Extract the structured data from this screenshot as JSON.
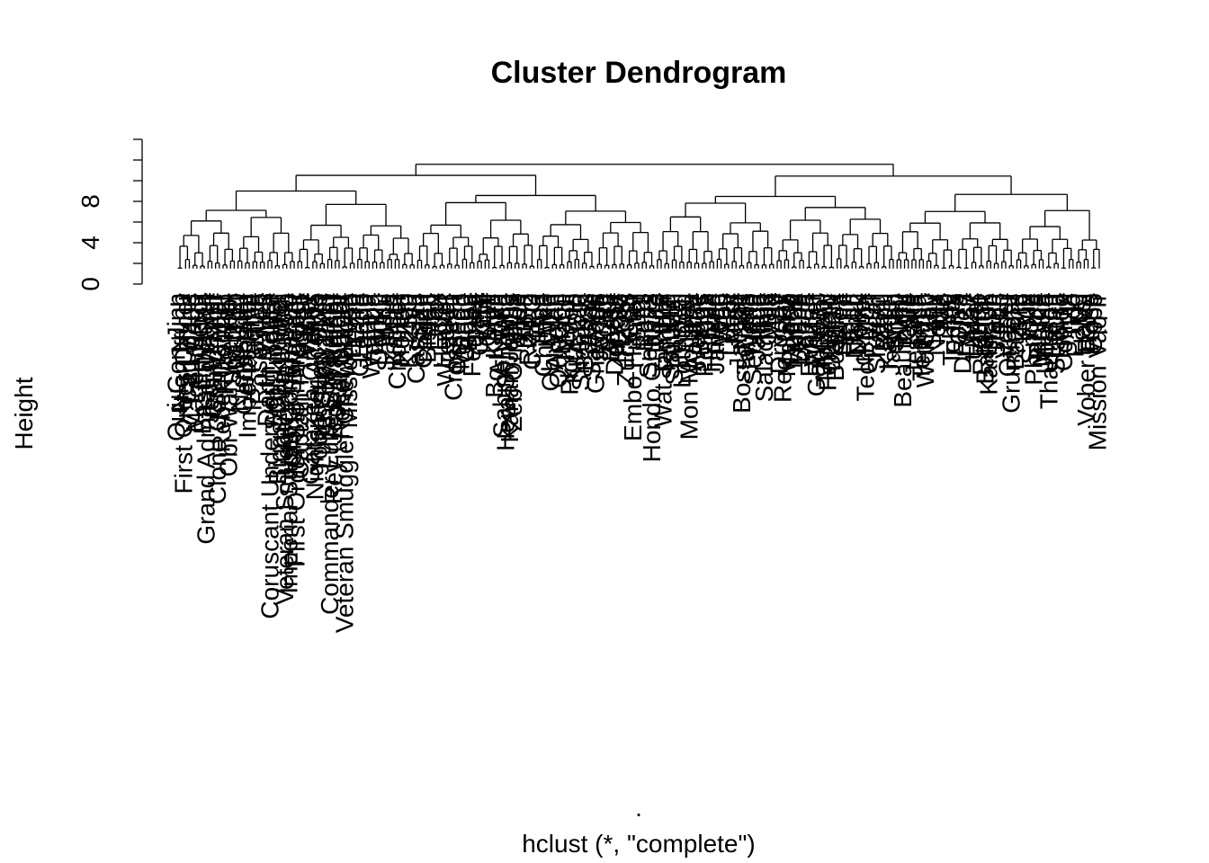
{
  "chart_data": {
    "type": "dendrogram",
    "title": "Cluster Dendrogram",
    "xlabel": ".",
    "sublabel": "hclust (*, \"complete\")",
    "ylabel": "Height",
    "yticks": [
      0,
      4,
      8
    ],
    "ylim": [
      0,
      14
    ],
    "method": "complete",
    "leaf_label_height": 1.5,
    "leaves": [
      "Qui-Gon Jinn",
      "Nien Nunb",
      "First Order Officer",
      "Cad Bane",
      "CT-21-0408",
      "Mace Windu",
      "Emperor",
      "Bastila Shan",
      "Grand Admiral Thrawn",
      "Jedi Master",
      "Grand Moff",
      "Clone Commander",
      "Rebel Trooper",
      "Kylo Ren",
      "Obi-Wan Kenobi",
      "Scanner",
      "IG-100",
      "Nightsister",
      "Geonosian",
      "Imperial Pilot",
      "Padme",
      "Jawa",
      "Rose Tico",
      "Fives",
      "Darth Vader",
      "Coruscant Underworld Police",
      "Sith Trooper",
      "Biggs Darklighter",
      "Luminara Unduli",
      "Veteran Smuggler Han Solo",
      "Imperial Super Commando",
      "Clone Sergeant",
      "First Order Stormtrooper",
      "Captain Phasma",
      "Rey",
      "Vader",
      "Garazeb Orrelios",
      "Nightsister Acolyte",
      "Young Han Solo",
      "Luke Skywalker",
      "Ahsoka Tano",
      "Commander Luke Skywalker",
      "Rey (Jedi Training)",
      "Jedi Knight",
      "Rebel Officer",
      "Veteran Smuggler Chewbacca",
      "Mission Vao",
      "Embo",
      "Ezra",
      "Greedo",
      "Lando",
      "Leia",
      "Wampa",
      "Tarkin",
      "Dooku",
      "Maul",
      "Sabine",
      "Hera",
      "Kanan",
      "Chopper",
      "Hondo",
      "Zeb",
      "K-2SO",
      "Jyn",
      "Cassian",
      "Baze",
      "Chirrut",
      "Bistan",
      "Pao",
      "Rex",
      "Echo",
      "Hunter",
      "Wrecker",
      "Tech",
      "Crosshair",
      "Omega",
      "Mando",
      "Grogu",
      "Boba",
      "Fennec",
      "Cara",
      "Greef",
      "Kuiil",
      "IG-11",
      "Moff",
      "Bo-Katan",
      "Ahsoka",
      "Sabine Wren",
      "Hera Syndulla",
      "Kanan Jarrus",
      "Zeb Orrelios",
      "Poe",
      "Finn",
      "BB-8",
      "R2-D2",
      "C-3PO",
      "Yoda",
      "Han",
      "Chewie",
      "Luke",
      "Obi-Wan",
      "Anakin",
      "Qui-Gon",
      "Mace",
      "Ki-Adi",
      "Plo Koon",
      "Kit Fisto",
      "Aayla",
      "Shaak Ti",
      "Barriss",
      "Asajj",
      "Savage",
      "Grievous",
      "Jango",
      "Zam",
      "Aurra",
      "Bossk",
      "Dengar",
      "IG-88",
      "4-LOM",
      "Zuckuss",
      "Cad",
      "Embo Hunter",
      "Sugi",
      "Latts",
      "Rumi",
      "Seripas",
      "Hondo Ohnaka",
      "Nute",
      "Rune",
      "Wat Tambor",
      "Poggle",
      "San Hill",
      "Shu Mai",
      "Passel",
      "Lott Dod",
      "Bail",
      "Mon Mothma",
      "Ackbar",
      "Wedge",
      "Biggs",
      "Porkins",
      "Dak",
      "Hobbie",
      "Janson",
      "Tycho",
      "Wes",
      "Zev",
      "Lobot",
      "Nien",
      "Jar Jar",
      "Boss Nass",
      "Tarpals",
      "Watto",
      "Sebulba",
      "Jabba",
      "Bib",
      "Salacious",
      "Oola",
      "Max",
      "Sy",
      "Droopy",
      "Ree-Yees",
      "Malakili",
      "Pondo",
      "Muftak",
      "Kabe",
      "Labria",
      "Ponda",
      "Evazan",
      "Wuher",
      "Garindan",
      "Ketwol",
      "Momaw",
      "Feltipern",
      "Dannik",
      "BoShek",
      "Brea",
      "Senni",
      "Figrin",
      "Tedn",
      "Nalan",
      "Doikk",
      "Ickabel",
      "Tech Mo'r",
      "Lirin",
      "Rycar",
      "Sharad",
      "Zorii",
      "Babu",
      "Kaydel",
      "Jannah",
      "Snap",
      "Nimi",
      "Beaumont",
      "Tallie",
      "Karé",
      "Jessika",
      "Larma",
      "Temmin",
      "Wollivan",
      "Zay",
      "Sinjir",
      "Norra",
      "Jas",
      "Rio",
      "Val",
      "Tobias",
      "Enfys",
      "Qi'ra",
      "Dryden",
      "L3-37",
      "Maz",
      "Unkar",
      "Teedo",
      "Rathtar",
      "Bala-Tik",
      "Kanjiklub",
      "Tasu",
      "Sidon",
      "Ello",
      "Vober",
      "Ottegru",
      "Grummgar",
      "Bazine",
      "Pru",
      "Kylo",
      "Hux",
      "Snoke",
      "Phasma",
      "Pryde",
      "Mitaka",
      "Unamo",
      "Thanisson",
      "Ematt",
      "Statura",
      "Holdo",
      "Connix",
      "Vi",
      "Tico",
      "Paige",
      "DJ",
      "Haysi",
      "Vober Dand",
      "Rose",
      "Oppo",
      "Mission Vao Ir"
    ]
  }
}
